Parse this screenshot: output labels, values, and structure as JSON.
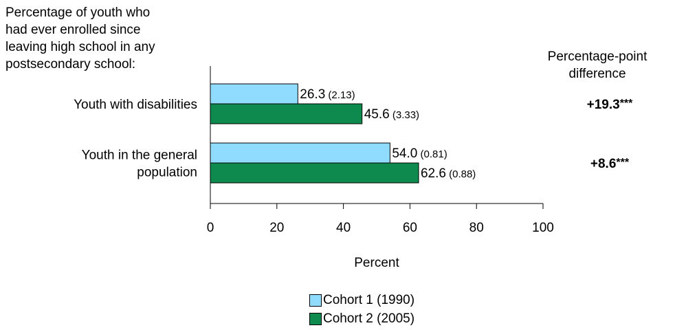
{
  "stub_title": [
    "Percentage of youth who",
    "had ever enrolled since",
    "leaving high school in any",
    "postsecondary school:"
  ],
  "difference_header": [
    "Percentage-point",
    "difference"
  ],
  "chart_data": {
    "type": "bar",
    "orientation": "horizontal",
    "categories": [
      [
        "Youth with disabilities"
      ],
      [
        "Youth in the general",
        "population"
      ]
    ],
    "series": [
      {
        "name": "Cohort 1 (1990)",
        "color": "#8fdcff",
        "values": [
          26.3,
          54.0
        ],
        "labels": [
          "26.3",
          "54.0"
        ],
        "se_labels": [
          "(2.13)",
          "(0.81)"
        ]
      },
      {
        "name": "Cohort 2 (2005)",
        "color": "#0e8a4e",
        "values": [
          45.6,
          62.6
        ],
        "labels": [
          "45.6",
          "62.6"
        ],
        "se_labels": [
          "(3.33)",
          "(0.88)"
        ]
      }
    ],
    "differences": [
      {
        "value": "+19.3",
        "stars": "***"
      },
      {
        "value": "+8.6",
        "stars": "***"
      }
    ],
    "xlabel": "Percent",
    "xlim": [
      0,
      100
    ],
    "xticks": [
      0,
      20,
      40,
      60,
      80,
      100
    ],
    "grid": false,
    "legend_position": "bottom-center"
  }
}
